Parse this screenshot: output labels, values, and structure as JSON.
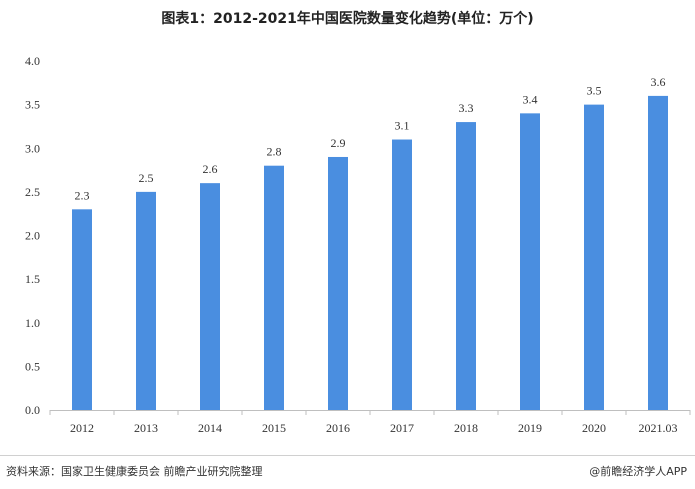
{
  "chart_data": {
    "type": "bar",
    "title": "图表1：2012-2021年中国医院数量变化趋势(单位：万个)",
    "categories": [
      "2012",
      "2013",
      "2014",
      "2015",
      "2016",
      "2017",
      "2018",
      "2019",
      "2020",
      "2021.03"
    ],
    "values": [
      2.3,
      2.5,
      2.6,
      2.8,
      2.9,
      3.1,
      3.3,
      3.4,
      3.5,
      3.6
    ],
    "data_labels": [
      "2.3",
      "2.5",
      "2.6",
      "2.8",
      "2.9",
      "3.1",
      "3.3",
      "3.4",
      "3.5",
      "3.6"
    ],
    "y_ticks": [
      "0.0",
      "0.5",
      "1.0",
      "1.5",
      "2.0",
      "2.5",
      "3.0",
      "3.5",
      "4.0"
    ],
    "ylim": [
      0,
      4
    ],
    "xlabel": "",
    "ylabel": "",
    "grid": false,
    "bar_color": "#4a8ee0"
  },
  "footer": {
    "source": "资料来源：国家卫生健康委员会 前瞻产业研究院整理",
    "brand": "@前瞻经济学人APP"
  }
}
